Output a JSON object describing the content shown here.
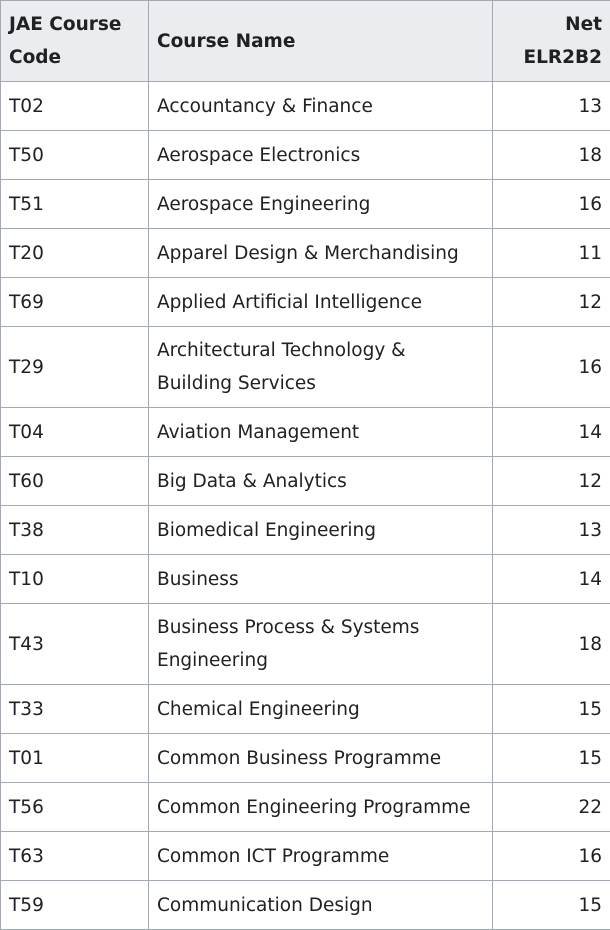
{
  "table": {
    "headers": {
      "code": "JAE Course Code",
      "name": "Course Name",
      "elr": "Net ELR2B2"
    },
    "rows": [
      {
        "code": "T02",
        "name": "Accountancy & Finance",
        "elr": "13"
      },
      {
        "code": "T50",
        "name": "Aerospace Electronics",
        "elr": "18"
      },
      {
        "code": "T51",
        "name": "Aerospace Engineering",
        "elr": "16"
      },
      {
        "code": "T20",
        "name": "Apparel Design & Merchandising",
        "elr": "11"
      },
      {
        "code": "T69",
        "name": "Applied Artificial Intelligence",
        "elr": "12"
      },
      {
        "code": "T29",
        "name": "Architectural Technology & Building Services",
        "elr": "16"
      },
      {
        "code": "T04",
        "name": "Aviation Management",
        "elr": "14"
      },
      {
        "code": "T60",
        "name": "Big Data & Analytics",
        "elr": "12"
      },
      {
        "code": "T38",
        "name": "Biomedical Engineering",
        "elr": "13"
      },
      {
        "code": "T10",
        "name": "Business",
        "elr": "14"
      },
      {
        "code": "T43",
        "name": "Business Process & Systems Engineering",
        "elr": "18"
      },
      {
        "code": "T33",
        "name": "Chemical Engineering",
        "elr": "15"
      },
      {
        "code": "T01",
        "name": "Common Business Programme",
        "elr": "15"
      },
      {
        "code": "T56",
        "name": "Common Engineering Programme",
        "elr": "22"
      },
      {
        "code": "T63",
        "name": "Common ICT Programme",
        "elr": "16"
      },
      {
        "code": "T59",
        "name": "Communication Design",
        "elr": "15"
      }
    ]
  }
}
